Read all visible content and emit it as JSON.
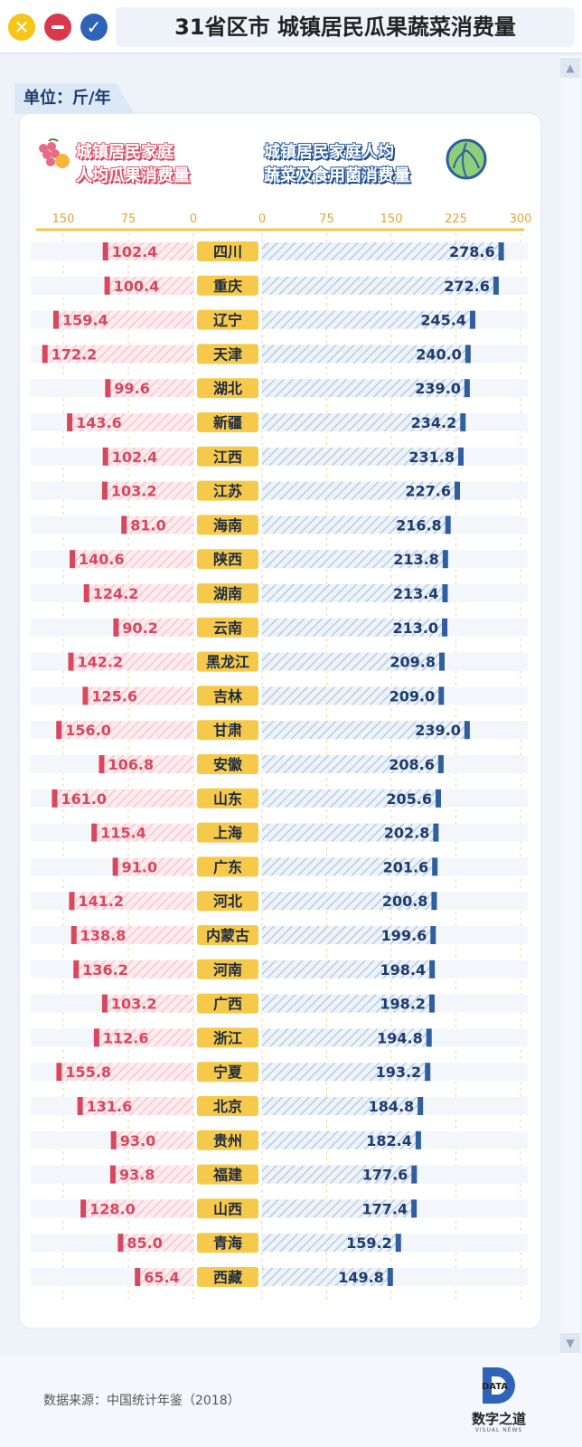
{
  "window": {
    "title": "31省区市 城镇居民瓜果蔬菜消费量"
  },
  "unit": "单位：斤/年",
  "legend": {
    "left_line1": "城镇居民家庭",
    "left_line2": "人均瓜果消费量",
    "right_line1": "城镇居民家庭人均",
    "right_line2": "蔬菜及食用菌消费量"
  },
  "colors": {
    "fruit": "#d8475d",
    "fruit_light": "#f6c6cf",
    "veg": "#2f5f9e",
    "veg_light": "#b9cbe2",
    "label_bg": "#f6c94a",
    "bg": "#eef3f9"
  },
  "icons": {
    "close": "close-icon",
    "minimize": "minus-icon",
    "confirm": "check-icon",
    "fruit": "grape-icon",
    "vegetable": "cabbage-icon"
  },
  "chart_data": {
    "type": "bar",
    "layout_style": "butterfly",
    "categories": [
      "四川",
      "重庆",
      "辽宁",
      "天津",
      "湖北",
      "新疆",
      "江西",
      "江苏",
      "海南",
      "陕西",
      "湖南",
      "云南",
      "黑龙江",
      "吉林",
      "甘肃",
      "安徽",
      "山东",
      "上海",
      "广东",
      "河北",
      "内蒙古",
      "河南",
      "广西",
      "浙江",
      "宁夏",
      "北京",
      "贵州",
      "福建",
      "山西",
      "青海",
      "西藏"
    ],
    "left_axis_ticks": [
      "150",
      "75",
      "0"
    ],
    "right_axis_ticks": [
      "0",
      "75",
      "150",
      "225",
      "300"
    ],
    "left_range": [
      0,
      150
    ],
    "right_range": [
      0,
      300
    ],
    "series": [
      {
        "values": [
          102.4,
          100.4,
          159.4,
          172.2,
          99.6,
          143.6,
          102.4,
          103.2,
          81.0,
          140.6,
          124.2,
          90.2,
          142.2,
          125.6,
          156.0,
          106.8,
          161.0,
          115.4,
          91.0,
          141.2,
          138.8,
          136.2,
          103.2,
          112.6,
          155.8,
          131.6,
          93.0,
          93.8,
          128.0,
          85.0,
          65.4
        ],
        "labels": [
          "102.4",
          "100.4",
          "159.4",
          "172.2",
          "99.6",
          "143.6",
          "102.4",
          "103.2",
          "81.0",
          "140.6",
          "124.2",
          "90.2",
          "142.2",
          "125.6",
          "156.0",
          "106.8",
          "161.0",
          "115.4",
          "91.0",
          "141.2",
          "138.8",
          "136.2",
          "103.2",
          "112.6",
          "155.8",
          "131.6",
          "93.0",
          "93.8",
          "128.0",
          "85.0",
          "65.4"
        ]
      },
      {
        "values": [
          278.6,
          272.6,
          245.4,
          240.0,
          239.0,
          234.2,
          231.8,
          227.6,
          216.8,
          213.8,
          213.4,
          213.0,
          209.8,
          209.0,
          239.0,
          208.6,
          205.6,
          202.8,
          201.6,
          200.8,
          199.6,
          198.4,
          198.2,
          194.8,
          193.2,
          184.8,
          182.4,
          177.6,
          177.4,
          159.2,
          149.8
        ],
        "labels": [
          "278.6",
          "272.6",
          "245.4",
          "240.0",
          "239.0",
          "234.2",
          "231.8",
          "227.6",
          "216.8",
          "213.8",
          "213.4",
          "213.0",
          "209.8",
          "209.0",
          "239.0",
          "208.6",
          "205.6",
          "202.8",
          "201.6",
          "200.8",
          "199.6",
          "198.4",
          "198.2",
          "194.8",
          "193.2",
          "184.8",
          "182.4",
          "177.6",
          "177.4",
          "159.2",
          "149.8"
        ]
      }
    ],
    "grid": true
  },
  "footer": {
    "source": "数据来源：中国统计年鉴（2018）",
    "logo_mark": "DATA",
    "logo_name": "数字之道",
    "logo_sub": "VISUAL NEWS"
  }
}
